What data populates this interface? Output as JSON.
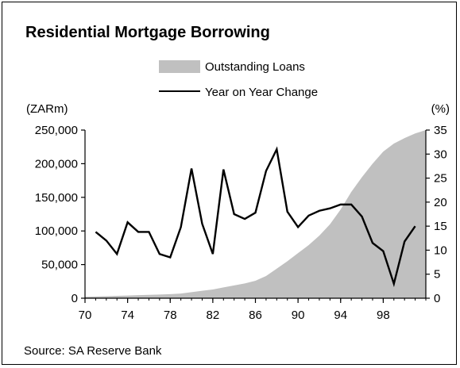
{
  "chart_data": {
    "type": "area+line",
    "title": "Residential Mortgage Borrowing",
    "source": "Source: SA Reserve Bank",
    "left_axis_unit": "(ZARm)",
    "right_axis_unit": "(%)",
    "y_left_lim": [
      0,
      250000
    ],
    "y_left_ticks": [
      0,
      50000,
      100000,
      150000,
      200000,
      250000
    ],
    "y_left_tick_labels": [
      "0",
      "50,000",
      "100,000",
      "150,000",
      "200,000",
      "250,000"
    ],
    "y_right_lim": [
      0,
      35
    ],
    "y_right_ticks": [
      0,
      5,
      10,
      15,
      20,
      25,
      30,
      35
    ],
    "y_right_tick_labels": [
      "0",
      "5",
      "10",
      "15",
      "20",
      "25",
      "30",
      "35"
    ],
    "x_lim": [
      1970,
      2002
    ],
    "x_ticks": [
      1970,
      1974,
      1978,
      1982,
      1986,
      1990,
      1994,
      1998
    ],
    "x_tick_labels": [
      "70",
      "74",
      "78",
      "82",
      "86",
      "90",
      "94",
      "98"
    ],
    "grid": false,
    "legend_placement": "top-center",
    "series": [
      {
        "name": "Outstanding Loans",
        "type": "area",
        "axis": "left",
        "color": "#c0c0c0",
        "x": [
          1970,
          1971,
          1972,
          1973,
          1974,
          1975,
          1976,
          1977,
          1978,
          1979,
          1980,
          1981,
          1982,
          1983,
          1984,
          1985,
          1986,
          1987,
          1988,
          1989,
          1990,
          1991,
          1992,
          1993,
          1994,
          1995,
          1996,
          1997,
          1998,
          1999,
          2000,
          2001,
          2002
        ],
        "y": [
          2000,
          2500,
          3000,
          3500,
          4000,
          4500,
          5000,
          5500,
          6000,
          7000,
          9000,
          11000,
          13000,
          16000,
          19000,
          22000,
          26000,
          33000,
          44000,
          55000,
          67000,
          79000,
          93000,
          110000,
          132000,
          158000,
          180000,
          200000,
          218000,
          230000,
          238000,
          245000,
          250000
        ]
      },
      {
        "name": "Year on Year Change",
        "type": "line",
        "axis": "right",
        "color": "#000000",
        "x": [
          1971,
          1972,
          1973,
          1974,
          1975,
          1976,
          1977,
          1978,
          1979,
          1980,
          1981,
          1982,
          1983,
          1984,
          1985,
          1986,
          1987,
          1988,
          1989,
          1990,
          1991,
          1992,
          1993,
          1994,
          1995,
          1996,
          1997,
          1998,
          1999,
          2000,
          2001
        ],
        "y": [
          13.8,
          12,
          9.2,
          15.8,
          13.8,
          13.8,
          9.2,
          8.5,
          14.8,
          27,
          15.5,
          9.2,
          26.8,
          17.5,
          16.5,
          17.8,
          26.5,
          31,
          18,
          14.8,
          17.2,
          18.2,
          18.7,
          19.5,
          19.5,
          17,
          11.5,
          9.8,
          3,
          11.8,
          15
        ]
      }
    ]
  }
}
